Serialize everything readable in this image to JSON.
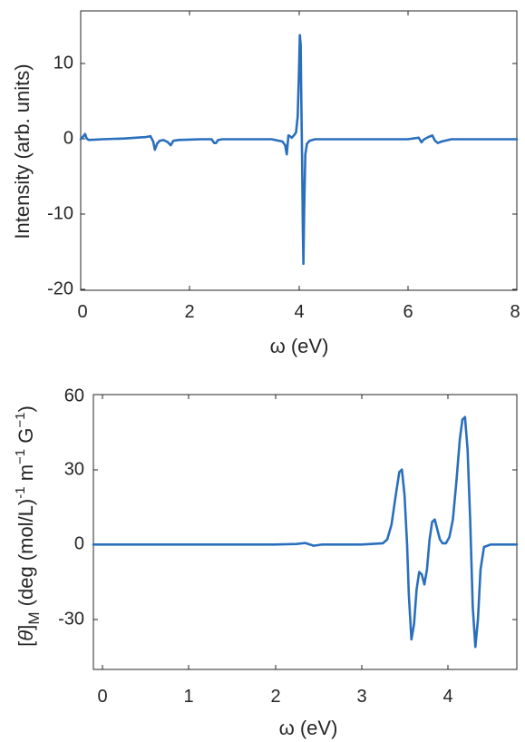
{
  "chart_data": [
    {
      "type": "line",
      "title": "",
      "xlabel": "ω (eV)",
      "ylabel": "Intensity (arb. units)",
      "xlim": [
        0,
        8
      ],
      "ylim": [
        -20,
        17
      ],
      "xticks": [
        0,
        2,
        4,
        6,
        8
      ],
      "xtick_labels": [
        "0",
        "2",
        "4",
        "6",
        "8"
      ],
      "yticks": [
        -20,
        -10,
        0,
        10
      ],
      "ytick_labels": [
        "-20",
        "-10",
        "0",
        "10"
      ],
      "grid": false,
      "legend": "none",
      "series": [
        {
          "color": "#2a6fbd",
          "x": [
            0.0,
            0.05,
            0.08,
            0.11,
            0.15,
            0.4,
            0.8,
            1.2,
            1.28,
            1.33,
            1.36,
            1.4,
            1.45,
            1.52,
            1.6,
            1.65,
            1.7,
            1.8,
            2.2,
            2.4,
            2.45,
            2.48,
            2.52,
            2.6,
            3.0,
            3.5,
            3.7,
            3.75,
            3.78,
            3.81,
            3.84,
            3.87,
            3.91,
            3.95,
            3.98,
            4.0,
            4.02,
            4.035,
            4.045,
            4.06,
            4.075,
            4.085,
            4.1,
            4.12,
            4.15,
            4.2,
            4.3,
            4.5,
            5.0,
            6.0,
            6.2,
            6.25,
            6.3,
            6.38,
            6.45,
            6.5,
            6.55,
            6.62,
            6.8,
            7.2,
            8.0
          ],
          "y": [
            0.0,
            0.4,
            0.7,
            0.1,
            -0.1,
            0.0,
            0.1,
            0.3,
            0.4,
            -0.3,
            -1.4,
            -0.6,
            -0.2,
            -0.1,
            -0.4,
            -0.8,
            -0.2,
            -0.1,
            0.0,
            0.0,
            -0.5,
            -0.5,
            -0.1,
            0.0,
            0.0,
            0.0,
            -0.3,
            -0.8,
            -2.0,
            0.5,
            0.4,
            0.2,
            0.5,
            0.9,
            3.0,
            8.0,
            13.8,
            12.5,
            6.0,
            -2.0,
            -12.0,
            -16.5,
            -9.0,
            -2.0,
            -0.6,
            -0.2,
            0.0,
            0.0,
            0.0,
            0.0,
            0.2,
            -0.4,
            0.0,
            0.3,
            0.5,
            -0.2,
            -0.5,
            -0.3,
            0.0,
            0.0,
            0.0
          ]
        }
      ]
    },
    {
      "type": "line",
      "title": "",
      "xlabel": "ω (eV)",
      "ylabel": "[θ]M (deg (mol/L)-1 m-1 G-1)",
      "ylabel_parts": {
        "bracket_open": "[",
        "theta": "θ",
        "bracket_close": "]",
        "sub": "M",
        "text1": " (deg (mol/L)",
        "sup1": "-1",
        "text2": " m",
        "sup2": "−1",
        "text3": " G",
        "sup3": "−1",
        "text4": ")"
      },
      "xlim": [
        -0.1,
        4.8
      ],
      "ylim": [
        -50,
        60
      ],
      "xticks": [
        0,
        1,
        2,
        3,
        4
      ],
      "xtick_labels": [
        "0",
        "1",
        "2",
        "3",
        "4"
      ],
      "yticks": [
        -30,
        0,
        30,
        60
      ],
      "ytick_labels": [
        "-30",
        "0",
        "30",
        "60"
      ],
      "grid": false,
      "legend": "none",
      "series": [
        {
          "color": "#2a6fbd",
          "x": [
            -0.1,
            1.0,
            2.0,
            2.25,
            2.35,
            2.45,
            2.55,
            3.0,
            3.25,
            3.3,
            3.35,
            3.4,
            3.44,
            3.47,
            3.5,
            3.53,
            3.55,
            3.58,
            3.61,
            3.64,
            3.67,
            3.7,
            3.73,
            3.76,
            3.79,
            3.82,
            3.85,
            3.88,
            3.91,
            3.94,
            3.98,
            4.02,
            4.06,
            4.1,
            4.14,
            4.17,
            4.2,
            4.23,
            4.26,
            4.29,
            4.32,
            4.35,
            4.38,
            4.42,
            4.5,
            4.8
          ],
          "y": [
            0,
            0,
            0,
            0.2,
            0.6,
            -0.5,
            0,
            0,
            0.5,
            2,
            8,
            20,
            29,
            30,
            20,
            0,
            -20,
            -38,
            -32,
            -18,
            -11,
            -12,
            -16,
            -10,
            2,
            9,
            10,
            6,
            2,
            0.5,
            0.5,
            3,
            10,
            25,
            42,
            50,
            51,
            38,
            10,
            -25,
            -41,
            -30,
            -10,
            -1,
            0,
            0
          ]
        }
      ]
    }
  ]
}
